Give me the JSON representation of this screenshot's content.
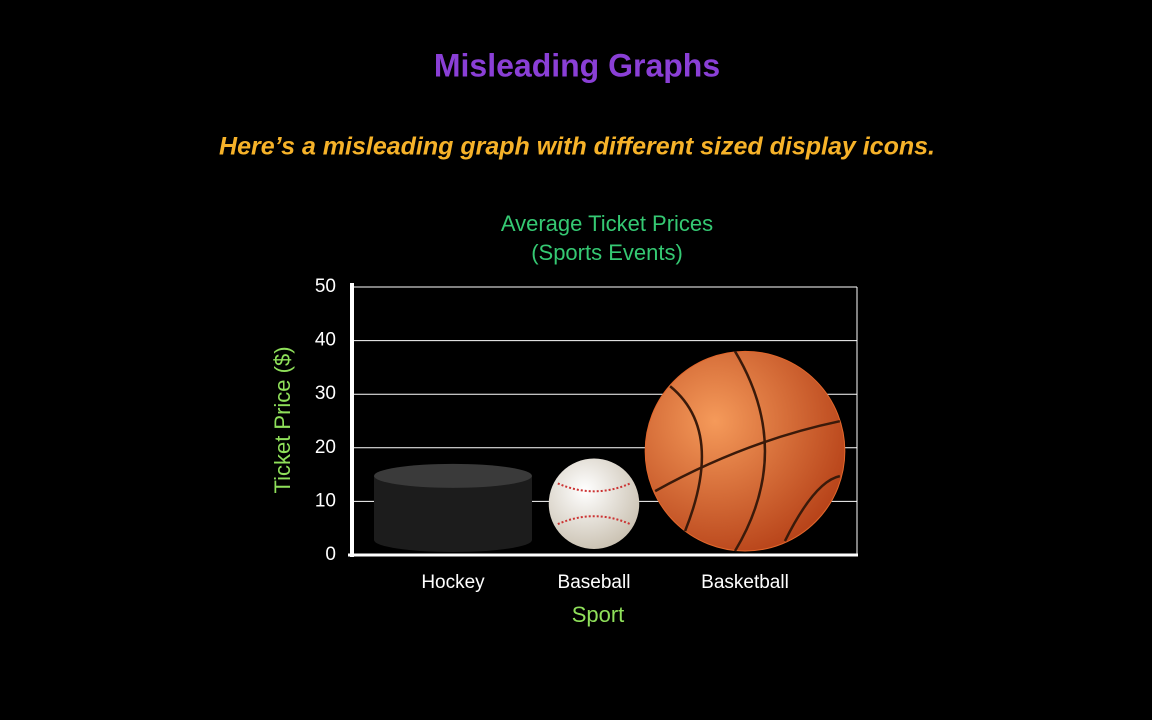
{
  "heading": "Misleading Graphs",
  "caption": "Here’s a misleading graph with different sized display icons.",
  "chart_data": {
    "type": "pictograph",
    "title": "Average Ticket Prices",
    "subtitle": "(Sports Events)",
    "x_label": "Sport",
    "y_label": "Ticket Price ($)",
    "categories": [
      "Hockey",
      "Baseball",
      "Basketball"
    ],
    "values": [
      17,
      18,
      38
    ],
    "colors": [
      "#1c1c1c",
      "#f1ece2",
      "#e2672c"
    ],
    "ylim": [
      0,
      50
    ],
    "yticks": [
      0,
      10,
      20,
      30,
      40,
      50
    ],
    "grid": true
  }
}
